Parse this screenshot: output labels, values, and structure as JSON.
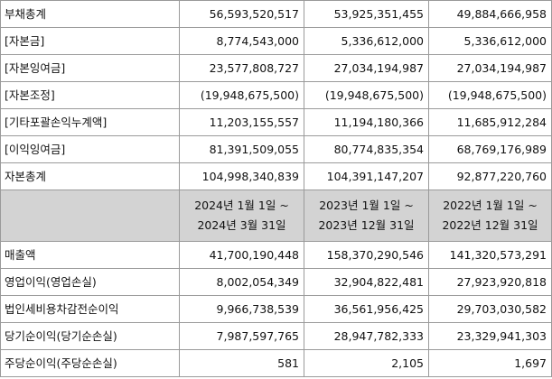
{
  "bs_rows": [
    {
      "label": "부채총계",
      "v2024": "56,593,520,517",
      "v2023": "53,925,351,455",
      "v2022": "49,884,666,958"
    },
    {
      "label": "[자본금]",
      "v2024": "8,774,543,000",
      "v2023": "5,336,612,000",
      "v2022": "5,336,612,000"
    },
    {
      "label": "[자본잉여금]",
      "v2024": "23,577,808,727",
      "v2023": "27,034,194,987",
      "v2022": "27,034,194,987"
    },
    {
      "label": "[자본조정]",
      "v2024": "(19,948,675,500)",
      "v2023": "(19,948,675,500)",
      "v2022": "(19,948,675,500)"
    },
    {
      "label": "[기타포괄손익누계액]",
      "v2024": "11,203,155,557",
      "v2023": "11,194,180,366",
      "v2022": "11,685,912,284"
    },
    {
      "label": "[이익잉여금]",
      "v2024": "81,391,509,055",
      "v2023": "80,774,835,354",
      "v2022": "68,769,176,989"
    },
    {
      "label": "자본총계",
      "v2024": "104,998,340,839",
      "v2023": "104,391,147,207",
      "v2022": "92,877,220,760"
    }
  ],
  "periods": [
    {
      "line1": "2024년 1월 1일 ~",
      "line2": "2024년 3월 31일"
    },
    {
      "line1": "2023년 1월 1일 ~",
      "line2": "2023년 12월 31일"
    },
    {
      "line1": "2022년 1월 1일 ~",
      "line2": "2022년 12월 31일"
    }
  ],
  "is_rows": [
    {
      "label": "매출액",
      "v2024": "41,700,190,448",
      "v2023": "158,370,290,546",
      "v2022": "141,320,573,291"
    },
    {
      "label": "영업이익(영업손실)",
      "v2024": "8,002,054,349",
      "v2023": "32,904,822,481",
      "v2022": "27,923,920,818"
    },
    {
      "label": "법인세비용차감전순이익",
      "v2024": "9,966,738,539",
      "v2023": "36,561,956,425",
      "v2022": "29,703,030,582"
    },
    {
      "label": "당기순이익(당기순손실)",
      "v2024": "7,987,597,765",
      "v2023": "28,947,782,333",
      "v2022": "23,329,941,303"
    },
    {
      "label": "주당순이익(주당순손실)",
      "v2024": "581",
      "v2023": "2,105",
      "v2022": "1,697"
    }
  ]
}
